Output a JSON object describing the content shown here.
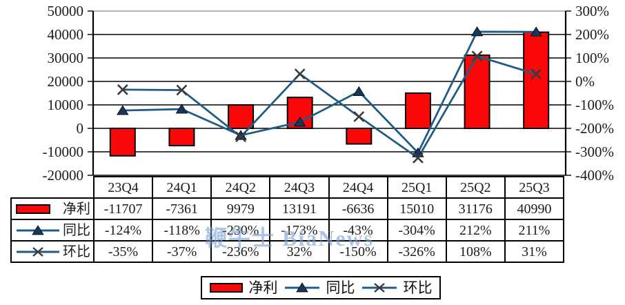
{
  "watermark": {
    "text": "鞭牛士 BiaNews"
  },
  "legend": {
    "items": [
      {
        "label": "净利"
      },
      {
        "label": "同比"
      },
      {
        "label": "环比"
      }
    ]
  },
  "table": {
    "quarters": [
      "23Q4",
      "24Q1",
      "24Q2",
      "24Q3",
      "24Q4",
      "25Q1",
      "25Q2",
      "25Q3"
    ],
    "rows": [
      {
        "label": "净利",
        "cells": [
          "-11707",
          "-7361",
          "9979",
          "13191",
          "-6636",
          "15010",
          "31176",
          "40990"
        ]
      },
      {
        "label": "同比",
        "cells": [
          "-124%",
          "-118%",
          "-230%",
          "-173%",
          "-43%",
          "-304%",
          "212%",
          "211%"
        ]
      },
      {
        "label": "环比",
        "cells": [
          "-35%",
          "-37%",
          "-236%",
          "32%",
          "-150%",
          "-326%",
          "108%",
          "31%"
        ]
      }
    ]
  },
  "chart_data": {
    "type": "combo",
    "categories": [
      "23Q4",
      "24Q1",
      "24Q2",
      "24Q3",
      "24Q4",
      "25Q1",
      "25Q2",
      "25Q3"
    ],
    "series": [
      {
        "name": "净利",
        "type": "bar",
        "axis": "left",
        "color": "#fb0707",
        "border_color": "#000000",
        "values": [
          -11707,
          -7361,
          9979,
          13191,
          -6636,
          15010,
          31176,
          40990
        ]
      },
      {
        "name": "同比",
        "type": "line",
        "axis": "right",
        "marker": "triangle",
        "color": "#1f5c85",
        "marker_color": "#17375e",
        "values": [
          -124,
          -118,
          -230,
          -173,
          -43,
          -304,
          212,
          211
        ]
      },
      {
        "name": "环比",
        "type": "line",
        "axis": "right",
        "marker": "x",
        "color": "#1f5c85",
        "marker_color": "#3a3a3a",
        "values": [
          -35,
          -37,
          -236,
          32,
          -150,
          -326,
          108,
          31
        ]
      }
    ],
    "left_axis": {
      "min": -20000,
      "max": 50000,
      "step": 10000,
      "labels": [
        "50000",
        "40000",
        "30000",
        "20000",
        "10000",
        "0",
        "-10000",
        "-20000"
      ]
    },
    "right_axis": {
      "min": -400,
      "max": 300,
      "step": 100,
      "labels": [
        "300%",
        "200%",
        "100%",
        "0%",
        "-100%",
        "-200%",
        "-300%",
        "-400%"
      ]
    },
    "grid": true,
    "legend_position": "bottom",
    "title": ""
  }
}
